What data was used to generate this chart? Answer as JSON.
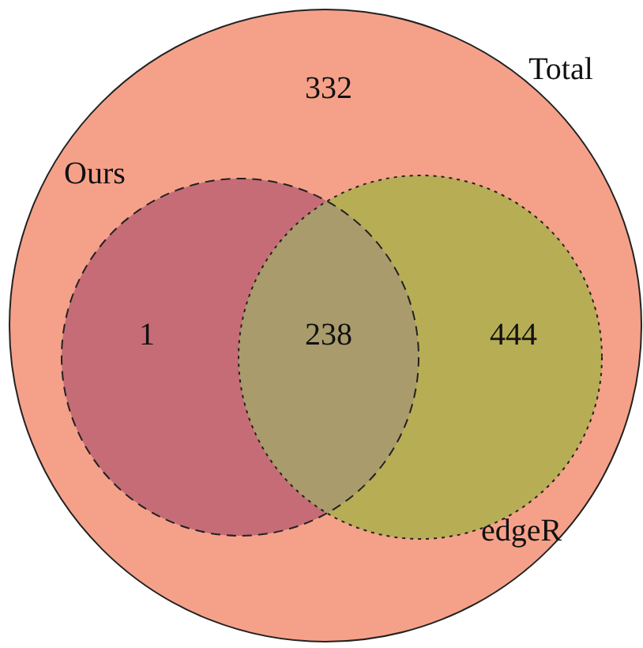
{
  "chart_data": {
    "type": "other",
    "categories": [
      null,
      null,
      null,
      null
    ],
    "values": [
      332,
      1,
      238,
      444
    ],
    "data_labels": true,
    "colors": [
      "#f5a189",
      "#c66c77",
      "#a99b6c",
      "#b7ad55"
    ],
    "annotations": [
      "Total",
      "Ours",
      "edgeR"
    ]
  }
}
